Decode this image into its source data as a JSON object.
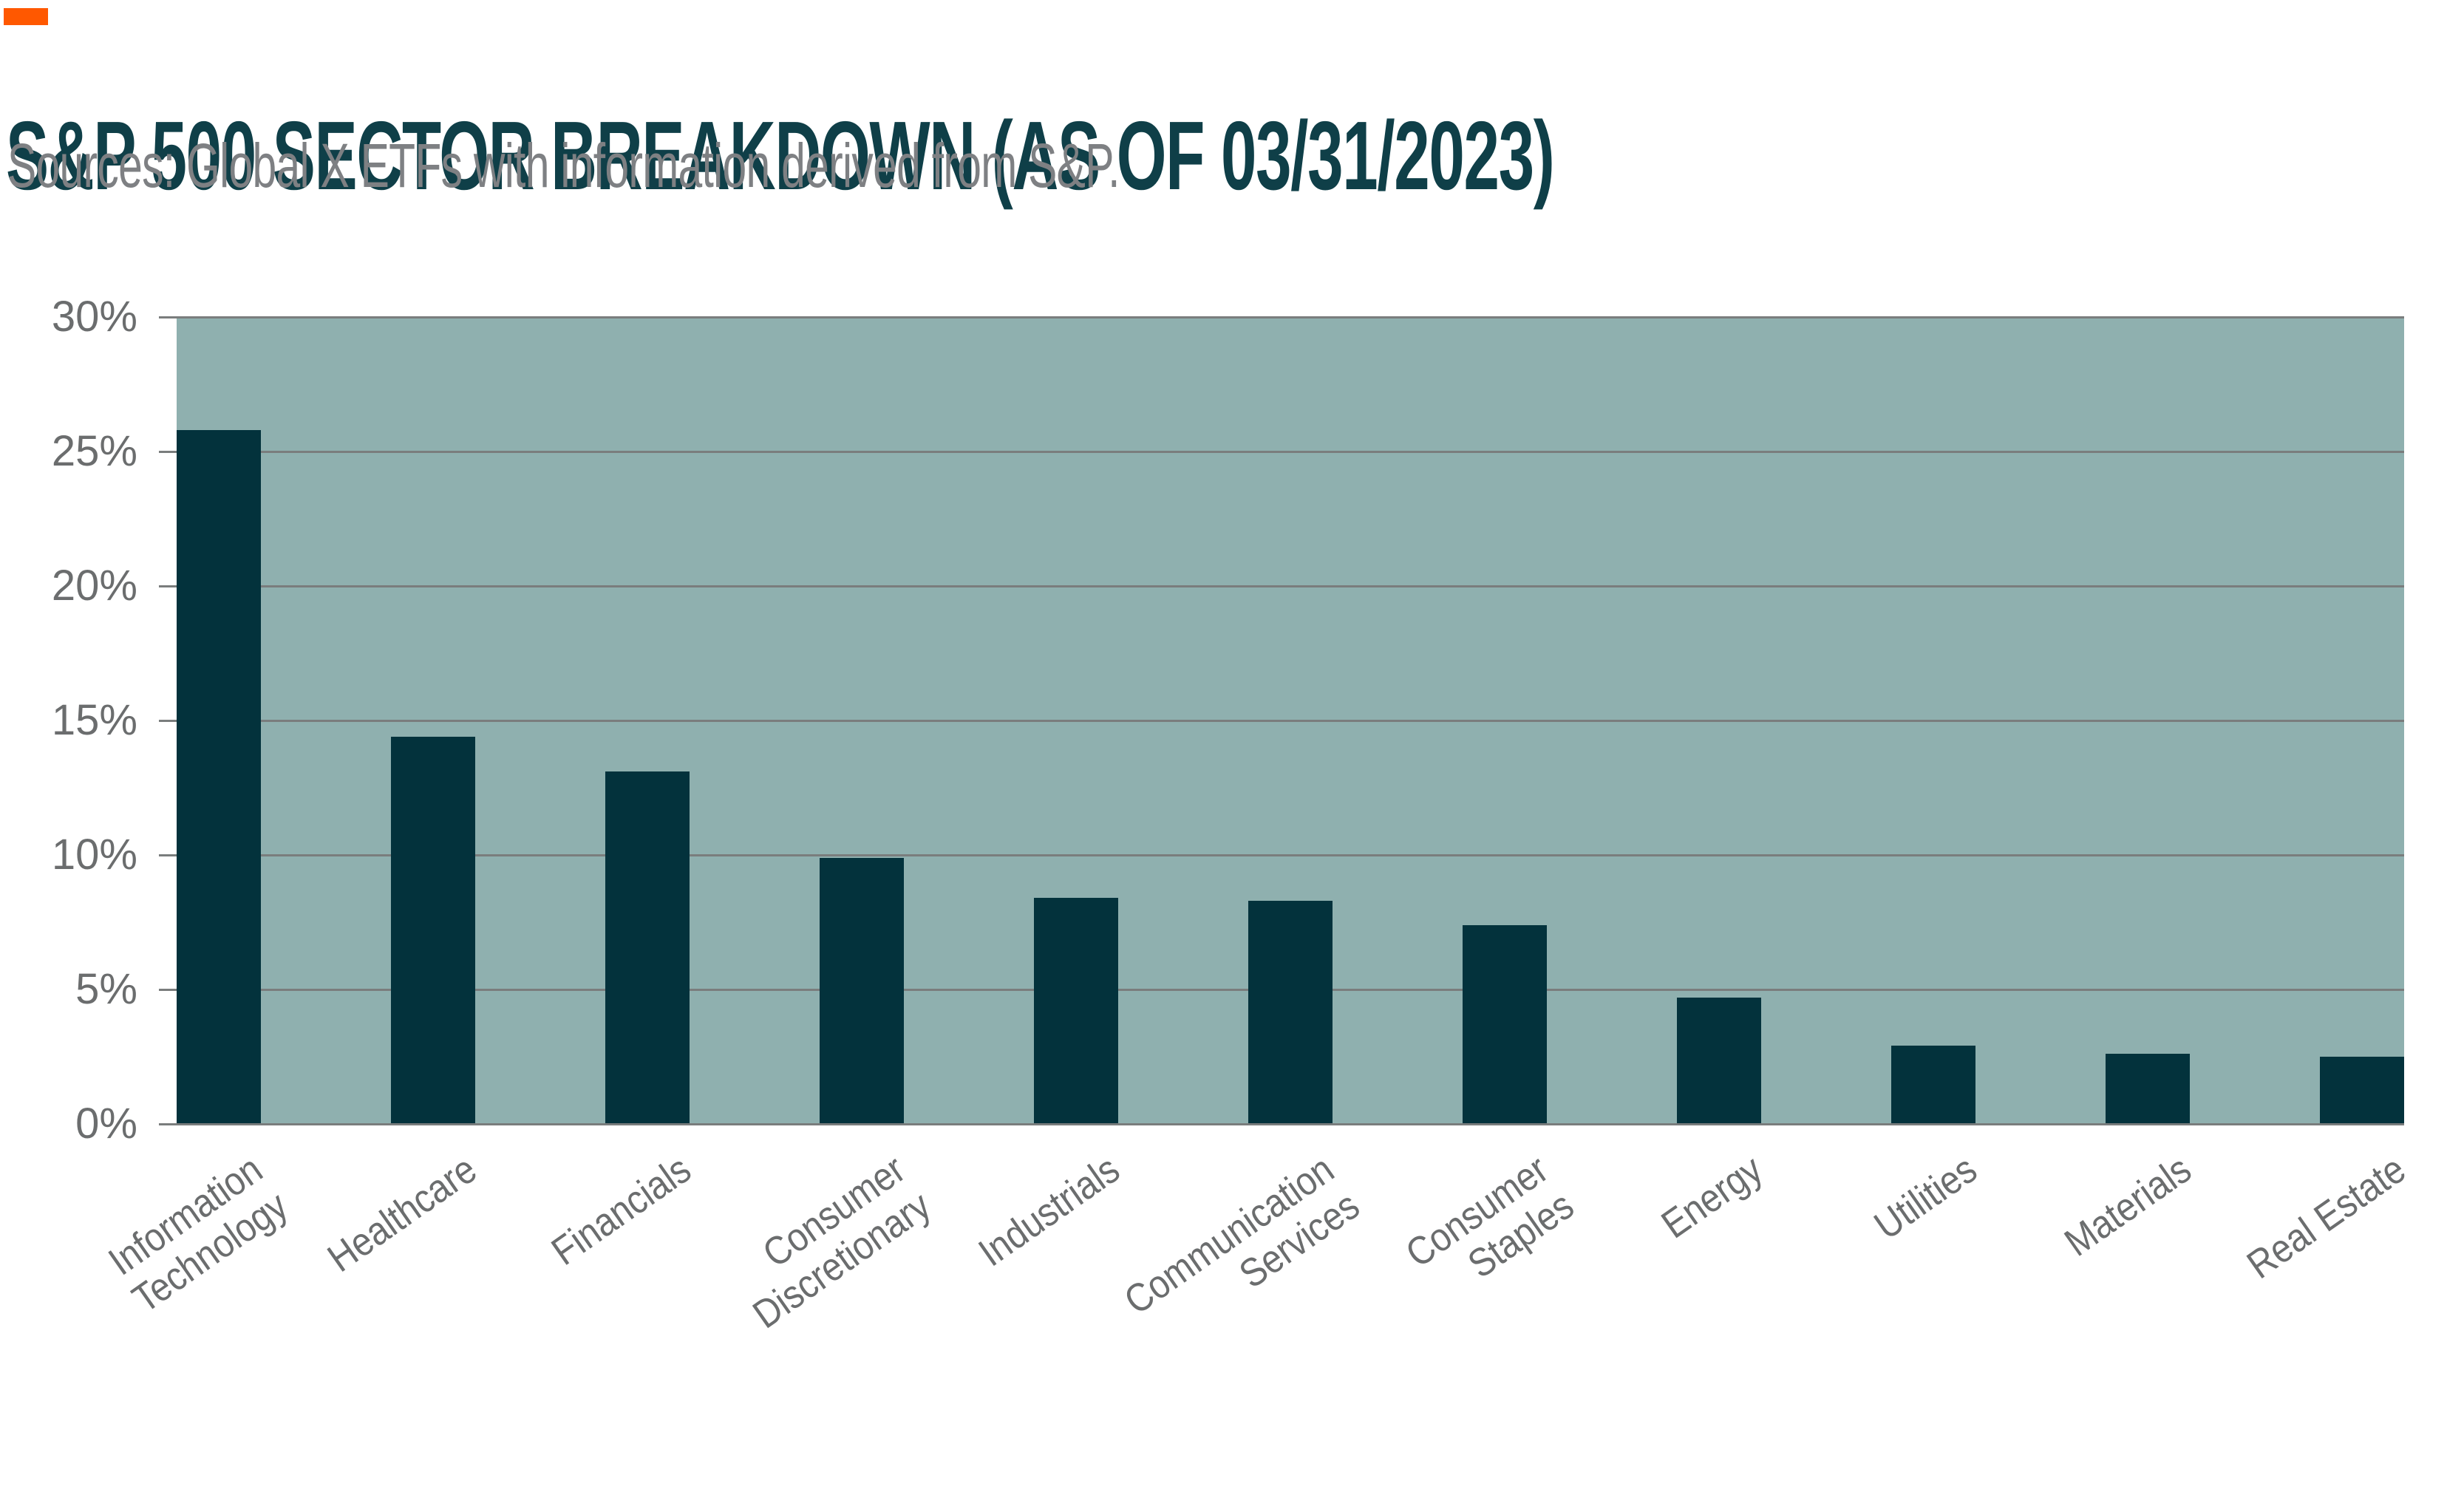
{
  "header": {
    "title": "S&P 500 SECTOR BREAKDOWN (AS OF 03/31/2023)",
    "source": "Sources: Global X ETFs with information derived from S&P.",
    "accent_color": "#FF5800",
    "title_color": "#0F3F48",
    "source_color": "#7E8083"
  },
  "chart_data": {
    "type": "bar",
    "title": "S&P 500 SECTOR BREAKDOWN (AS OF 03/31/2023)",
    "source": "Sources: Global X ETFs with information derived from S&P.",
    "categories": [
      "Information Technology",
      "Healthcare",
      "Financials",
      "Consumer Discretionary",
      "Industrials",
      "Communication Services",
      "Consumer Staples",
      "Energy",
      "Utilities",
      "Materials",
      "Real Estate"
    ],
    "category_label_lines": [
      [
        "Information",
        "Technology"
      ],
      [
        "Healthcare"
      ],
      [
        "Financials"
      ],
      [
        "Consumer",
        "Discretionary"
      ],
      [
        "Industrials"
      ],
      [
        "Communication",
        "Services"
      ],
      [
        "Consumer",
        "Staples"
      ],
      [
        "Energy"
      ],
      [
        "Utilities"
      ],
      [
        "Materials"
      ],
      [
        "Real Estate"
      ]
    ],
    "values": [
      25.8,
      14.4,
      13.1,
      9.9,
      8.4,
      8.3,
      7.4,
      4.7,
      2.9,
      2.6,
      2.5
    ],
    "unit": "%",
    "xlabel": "",
    "ylabel": "",
    "ylim": [
      0,
      30
    ],
    "yticks": [
      0,
      5,
      10,
      15,
      20,
      25,
      30
    ],
    "ytick_labels": [
      "0%",
      "5%",
      "10%",
      "15%",
      "20%",
      "25%",
      "30%"
    ],
    "grid": true,
    "legend": "none",
    "bar_color": "#03323C",
    "plot_background": "#8FB0AF",
    "gridline_color": "#7A7D7D",
    "tick_label_color": "#6B6D6E",
    "x_label_color": "#6B6D6E"
  }
}
